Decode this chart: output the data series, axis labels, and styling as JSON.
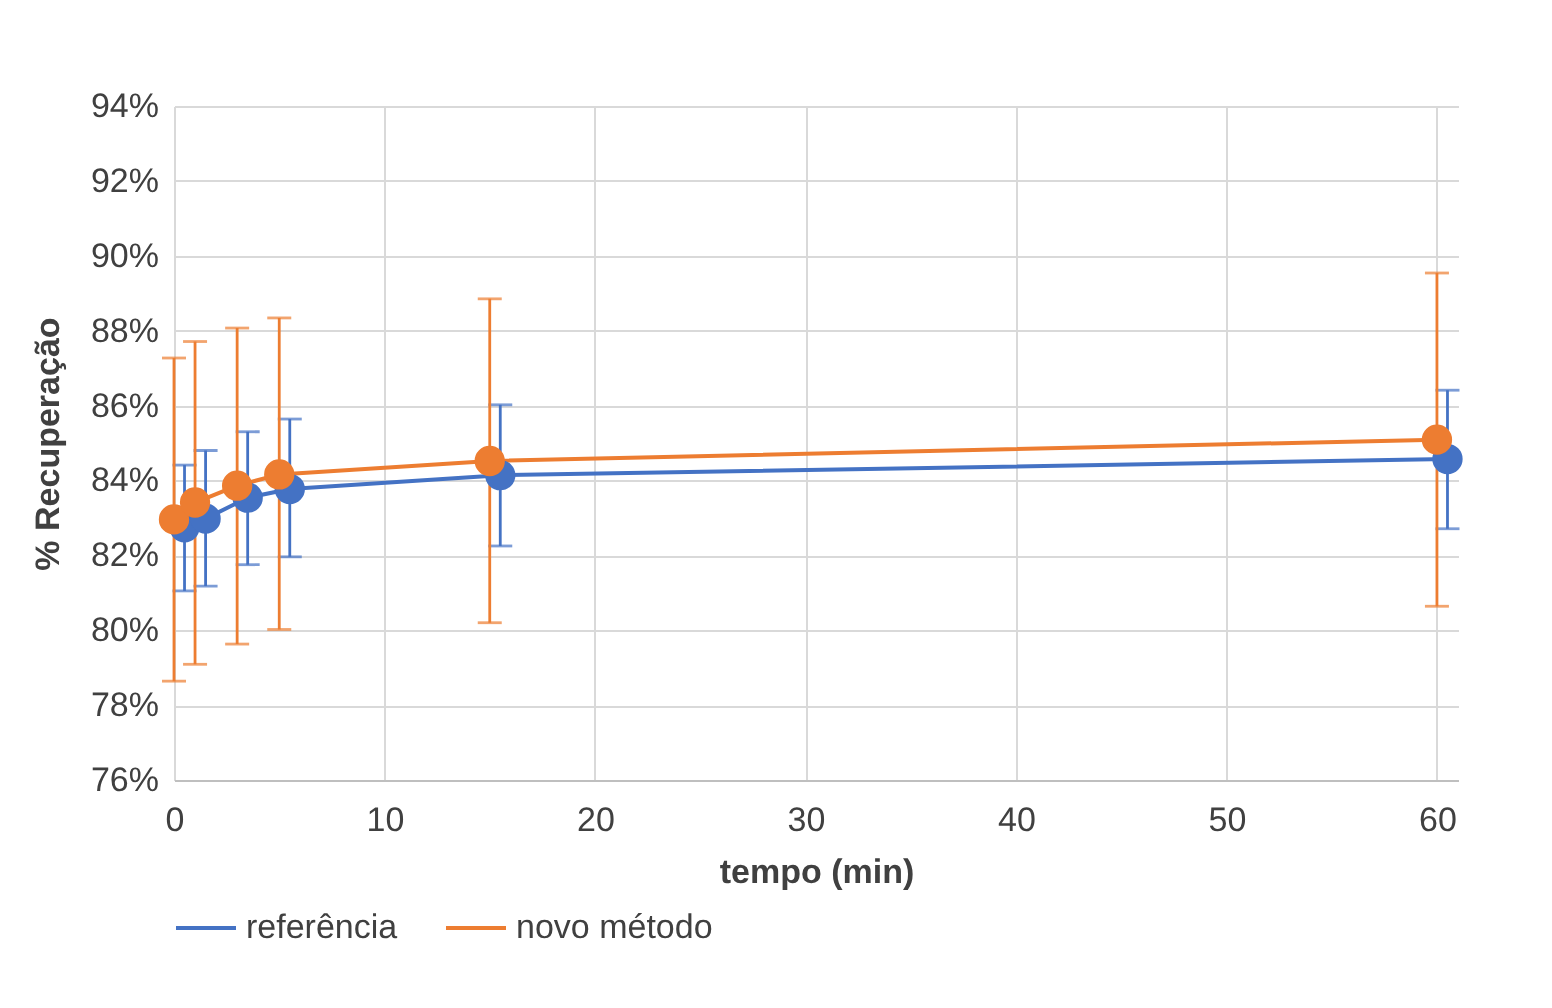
{
  "chart_data": {
    "type": "line",
    "xlabel": "tempo (min)",
    "ylabel": "% Recuperação",
    "xlim": [
      0,
      61
    ],
    "xticks": [
      0,
      10,
      20,
      30,
      40,
      50,
      60
    ],
    "ylim": [
      76,
      94
    ],
    "yticks": [
      {
        "value": 76,
        "label": "76%"
      },
      {
        "value": 78,
        "label": "78%"
      },
      {
        "value": 80,
        "label": "80%"
      },
      {
        "value": 82,
        "label": "82%"
      },
      {
        "value": 84,
        "label": "84%"
      },
      {
        "value": 86,
        "label": "86%"
      },
      {
        "value": 88,
        "label": "88%"
      },
      {
        "value": 90,
        "label": "90%"
      },
      {
        "value": 92,
        "label": "92%"
      },
      {
        "value": 94,
        "label": "94%"
      }
    ],
    "grid": true,
    "legend": "bottom",
    "marker": "circle",
    "line_style": "solid",
    "series": [
      {
        "name": "referência",
        "color": "#4472c4",
        "x": [
          0.5,
          1.5,
          3.5,
          5.5,
          15.5,
          60.5
        ],
        "values": [
          82.75,
          82.98,
          83.54,
          83.77,
          84.14,
          84.57
        ],
        "errors": [
          [
            81.05,
            84.41
          ],
          [
            81.18,
            84.8
          ],
          [
            81.75,
            85.3
          ],
          [
            81.96,
            85.64
          ],
          [
            82.25,
            86.02
          ],
          [
            82.71,
            86.41
          ]
        ]
      },
      {
        "name": "novo método",
        "color": "#ed7d31",
        "x": [
          0,
          1,
          3,
          5,
          15,
          60
        ],
        "values": [
          82.96,
          83.41,
          83.86,
          84.16,
          84.52,
          85.09
        ],
        "errors": [
          [
            78.64,
            87.27
          ],
          [
            79.09,
            87.71
          ],
          [
            79.63,
            88.07
          ],
          [
            80.02,
            88.34
          ],
          [
            80.2,
            88.85
          ],
          [
            80.64,
            89.54
          ]
        ]
      }
    ]
  }
}
